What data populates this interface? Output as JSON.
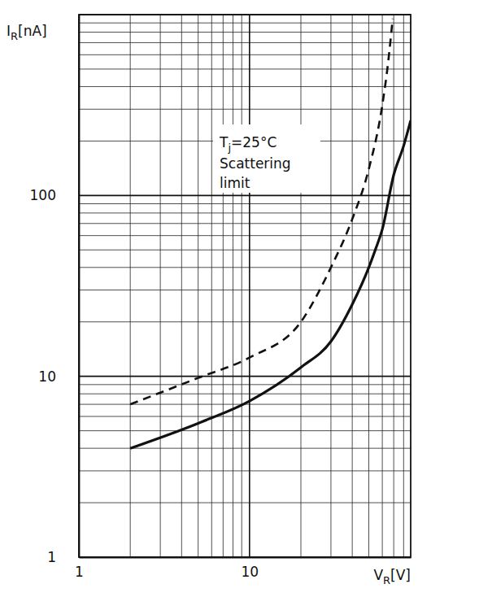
{
  "chart_data": {
    "type": "line",
    "log": true,
    "grid": true,
    "xlabel": {
      "main": "V",
      "subscript": "R",
      "rest": "[V]"
    },
    "ylabel": {
      "main": "I",
      "subscript": "R",
      "rest": "[nA]"
    },
    "annotations": [
      {
        "main": "T",
        "subscript": "j",
        "rest": "=25°C"
      },
      {
        "lines": [
          "Scattering",
          "limit"
        ]
      }
    ],
    "xlim": [
      1,
      88
    ],
    "ylim": [
      1,
      1000
    ],
    "xticks": [
      1,
      10
    ],
    "yticks": [
      1,
      10,
      100
    ],
    "series": [
      {
        "color": "#111111",
        "line_style": "dashed",
        "x": [
          2,
          5,
          10,
          20,
          30,
          40,
          50,
          60,
          65,
          69
        ],
        "values": [
          7,
          9.8,
          12.7,
          20,
          40,
          74,
          140,
          316,
          550,
          950
        ]
      },
      {
        "color": "#111111",
        "line_style": "solid",
        "x": [
          2,
          5,
          10,
          20,
          30,
          40,
          50,
          55,
          60,
          70,
          80,
          88
        ],
        "values": [
          4,
          5.5,
          7.3,
          11.2,
          15.6,
          25,
          40,
          51,
          65,
          130,
          188,
          260
        ]
      }
    ]
  }
}
